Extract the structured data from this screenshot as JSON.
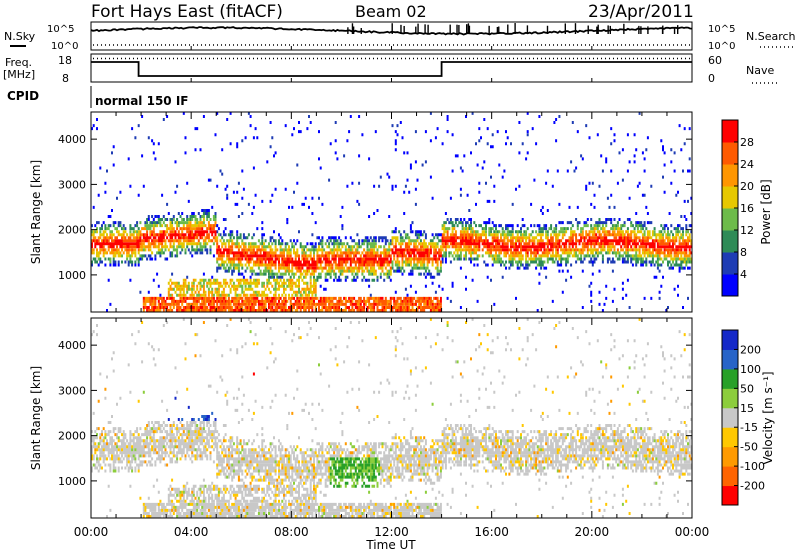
{
  "header": {
    "title": "Fort Hays East (fitACF)",
    "beam": "Beam 02",
    "date": "23/Apr/2011"
  },
  "strip_labels": {
    "nsky": "N.Sky",
    "nsearch": "N.Search",
    "freq_line1": "Freq.",
    "freq_line2": "[MHz]",
    "nave": "Nave",
    "cpid": "CPID",
    "cpid_value": "normal 150 IF",
    "noise_ticks": [
      "10^5",
      "10^0"
    ],
    "freq_ticks": [
      "18",
      "8"
    ],
    "nave_ticks": [
      "60",
      "0"
    ]
  },
  "colors": {
    "power": [
      "#0000ff",
      "#1e3cb4",
      "#2e8b57",
      "#6dbb4a",
      "#e6c800",
      "#ff9600",
      "#ff5a00",
      "#ff0000"
    ],
    "velocity": [
      "#ff0000",
      "#ff6400",
      "#ff9a00",
      "#ffc800",
      "#c8c8c8",
      "#8ccd3c",
      "#28a028",
      "#2864c8",
      "#1428c8"
    ]
  },
  "chart_data": [
    {
      "type": "heatmap",
      "parameter": "Power",
      "xlabel": "",
      "ylabel": "Slant Range [km]",
      "x_ticks": [
        "00:00",
        "04:00",
        "08:00",
        "12:00",
        "16:00",
        "20:00",
        "00:00"
      ],
      "y_ticks": [
        1000,
        2000,
        3000,
        4000
      ],
      "ylim": [
        180,
        4600
      ],
      "colorbar_label": "Power [dB]",
      "colorbar_ticks": [
        4,
        8,
        12,
        16,
        20,
        24,
        28
      ],
      "colorbar_range": [
        0,
        32
      ]
    },
    {
      "type": "heatmap",
      "parameter": "Velocity",
      "xlabel": "Time UT",
      "ylabel": "Slant Range [km]",
      "x_ticks": [
        "00:00",
        "04:00",
        "08:00",
        "12:00",
        "16:00",
        "20:00",
        "00:00"
      ],
      "y_ticks": [
        1000,
        2000,
        3000,
        4000
      ],
      "ylim": [
        180,
        4600
      ],
      "colorbar_label": "Velocity [m s⁻¹]",
      "colorbar_ticks": [
        200,
        100,
        50,
        15,
        -15,
        -50,
        -100,
        -200
      ]
    }
  ]
}
